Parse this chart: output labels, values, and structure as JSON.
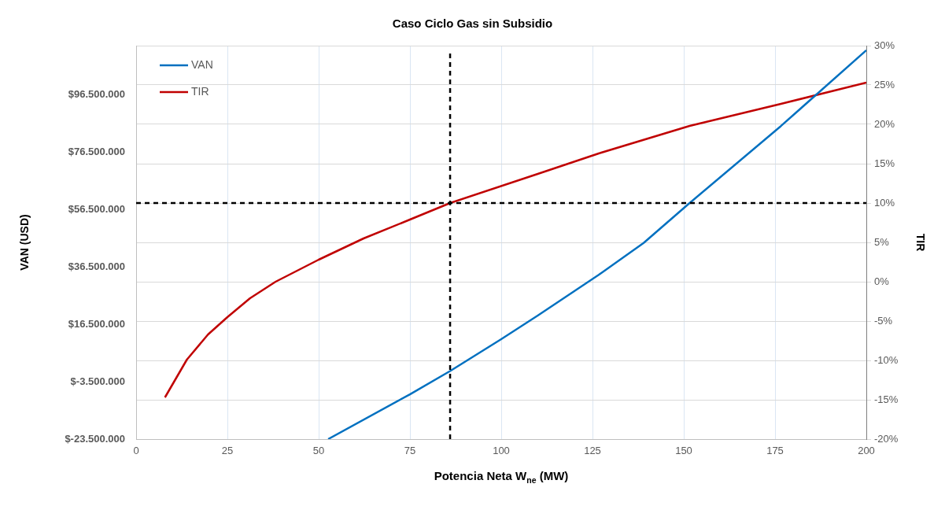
{
  "chart_data": {
    "type": "line",
    "title": "Caso Ciclo Gas sin Subsidio",
    "xlabel": "Potencia Neta W$_{ne}$ (MW)",
    "ylabel": "VAN (USD)",
    "y2label": "TIR",
    "xlim": [
      0,
      200
    ],
    "xticks": [
      0,
      25,
      50,
      75,
      100,
      125,
      150,
      175,
      200
    ],
    "ylim": [
      -23500000,
      113500000
    ],
    "yticks": [
      {
        "value": -23500000,
        "label": "$-23.500.000"
      },
      {
        "value": -3500000,
        "label": "$-3.500.000"
      },
      {
        "value": 16500000,
        "label": "$16.500.000"
      },
      {
        "value": 36500000,
        "label": "$36.500.000"
      },
      {
        "value": 56500000,
        "label": "$56.500.000"
      },
      {
        "value": 76500000,
        "label": "$76.500.000"
      },
      {
        "value": 96500000,
        "label": "$96.500.000"
      }
    ],
    "y2lim": [
      -20,
      30
    ],
    "y2ticks": [
      {
        "value": -20,
        "label": "-20%"
      },
      {
        "value": -15,
        "label": "-15%"
      },
      {
        "value": -10,
        "label": "-10%"
      },
      {
        "value": -5,
        "label": "-5%"
      },
      {
        "value": 0,
        "label": "0%"
      },
      {
        "value": 5,
        "label": "5%"
      },
      {
        "value": 10,
        "label": "10%"
      },
      {
        "value": 15,
        "label": "15%"
      },
      {
        "value": 20,
        "label": "20%"
      },
      {
        "value": 25,
        "label": "25%"
      },
      {
        "value": 30,
        "label": "30%"
      }
    ],
    "grid": true,
    "legend": "top left",
    "marker": "none",
    "line_style": "solid",
    "series": [
      {
        "name": "VAN",
        "color": "#0070c0",
        "x": [
          52.6,
          75,
          86,
          100,
          110,
          126.7,
          139,
          151.6,
          176.6,
          200
        ],
        "values": [
          -23500000,
          -7900000,
          200000,
          11300000,
          19500000,
          33700000,
          44800000,
          58700000,
          85500000,
          111900000
        ]
      },
      {
        "name": "TIR",
        "color": "#c00000",
        "axis": "y2",
        "x": [
          7.9,
          13.9,
          19.7,
          25,
          31.2,
          38.2,
          50,
          62.3,
          75,
          86,
          110,
          126.7,
          151.6,
          176.6,
          200
        ],
        "values": [
          -14.7,
          -9.9,
          -6.7,
          -4.5,
          -2.1,
          0,
          2.8,
          5.5,
          7.9,
          10,
          13.7,
          16.3,
          19.8,
          22.6,
          25.3
        ]
      }
    ],
    "ref_lines": [
      {
        "axis": "x",
        "value": 86,
        "color": "#000000",
        "line_style": "dashed"
      },
      {
        "axis": "y2",
        "value": 10,
        "color": "#000000",
        "line_style": "dashed"
      }
    ]
  }
}
